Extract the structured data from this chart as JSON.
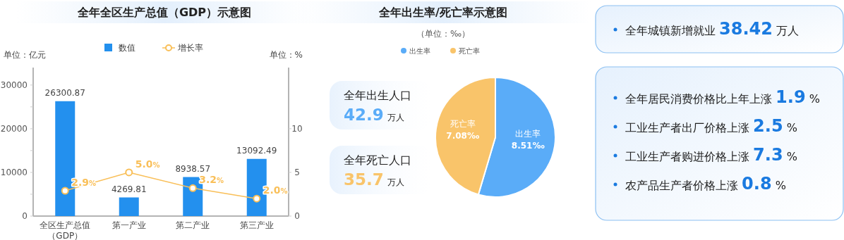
{
  "chart_data": [
    {
      "type": "bar",
      "title": "全年全区生产总值（GDP）示意图",
      "ylabel": "单位：亿元",
      "y2label": "单位：%",
      "categories": [
        "全区生产总值（GDP）",
        "第一产业",
        "第二产业",
        "第三产业"
      ],
      "series": [
        {
          "name": "数值",
          "type": "bar",
          "color": "#2390ee",
          "values": [
            26300.87,
            4269.81,
            8938.57,
            13092.49
          ],
          "value_labels": [
            "26300.87",
            "4269.81",
            "8938.57",
            "13092.49"
          ]
        },
        {
          "name": "增长率",
          "type": "line",
          "axis": "y2",
          "color": "#f9bf58",
          "marker": "circle",
          "values": [
            2.9,
            5.0,
            3.2,
            2.0
          ],
          "value_labels": [
            "2.9%",
            "5.0%",
            "3.2%",
            "2.0%"
          ]
        }
      ],
      "ylim": [
        0,
        34000
      ],
      "yticks": [
        0,
        {
          "value": 5000,
          "label": null
        },
        10000,
        {
          "value": 15000,
          "label": null
        },
        20000,
        {
          "value": 25000,
          "label": null
        },
        30000
      ],
      "y2lim": [
        0,
        17
      ],
      "y2ticks": [
        0,
        5,
        10
      ],
      "legend": "top"
    },
    {
      "type": "pie",
      "title": "全年出生率/死亡率示意图",
      "subtitle": "（单位：‰）",
      "categories": [
        "出生率",
        "死亡率"
      ],
      "values": [
        8.51,
        7.08
      ],
      "colors": [
        "#5aacf8",
        "#f9c46a"
      ],
      "value_labels": [
        "8.51‰",
        "7.08‰"
      ],
      "legend": "top",
      "annotations": [
        "全年出生人口 42.9 万人",
        "全年死亡人口 35.7 万人"
      ]
    },
    {
      "type": "other",
      "annotations": [
        "全年城镇新增就业 38.42 万人"
      ]
    },
    {
      "type": "other",
      "annotations": [
        "全年居民消费价格比上年上涨 1.9 %",
        "工业生产者出厂价格上涨 2.5 %",
        "工业生产者购进价格上涨 7.3 %",
        "农产品生产者价格上涨 0.8 %"
      ]
    }
  ]
}
